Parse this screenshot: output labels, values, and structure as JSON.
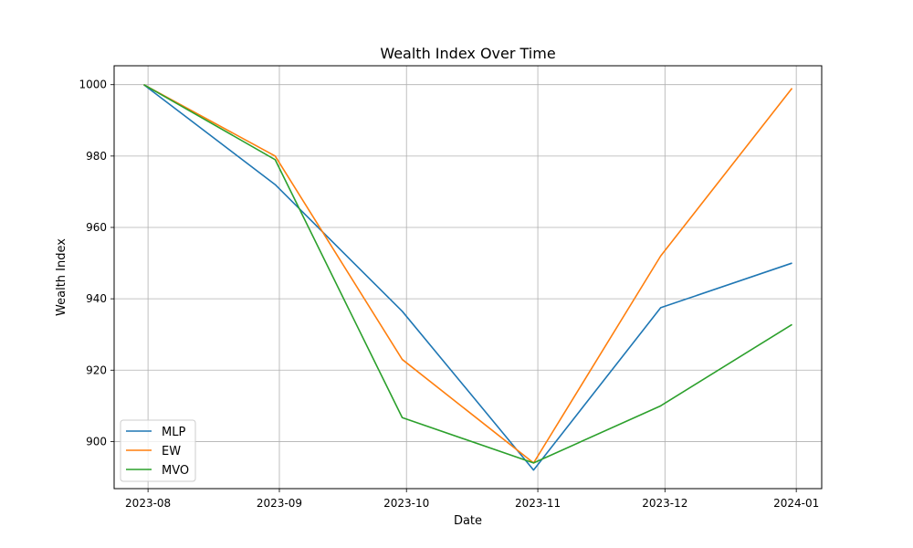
{
  "chart_data": {
    "type": "line",
    "title": "Wealth Index Over Time",
    "xlabel": "Date",
    "ylabel": "Wealth Index",
    "x": [
      "2023-07-31",
      "2023-08-31",
      "2023-09-30",
      "2023-10-31",
      "2023-11-30",
      "2023-12-31"
    ],
    "xlim": [
      "2023-07-24",
      "2024-01-07"
    ],
    "ylim": [
      886.8,
      1005.3
    ],
    "x_ticks": [
      "2023-08-01",
      "2023-09-01",
      "2023-10-01",
      "2023-11-01",
      "2023-12-01",
      "2024-01-01"
    ],
    "x_tick_labels": [
      "2023-08",
      "2023-09",
      "2023-10",
      "2023-11",
      "2023-12",
      "2024-01"
    ],
    "y_ticks": [
      900,
      920,
      940,
      960,
      980,
      1000
    ],
    "y_tick_labels": [
      "900",
      "920",
      "940",
      "960",
      "980",
      "1000"
    ],
    "grid": true,
    "legend_position": "lower-left",
    "series": [
      {
        "name": "MLP",
        "color": "#1f77b4",
        "values": [
          1000,
          972,
          936.5,
          892,
          937.5,
          950
        ]
      },
      {
        "name": "EW",
        "color": "#ff7f0e",
        "values": [
          1000,
          980,
          923,
          894,
          952,
          999
        ]
      },
      {
        "name": "MVO",
        "color": "#2ca02c",
        "values": [
          1000,
          979,
          906.7,
          894,
          910,
          932.8
        ]
      }
    ]
  }
}
